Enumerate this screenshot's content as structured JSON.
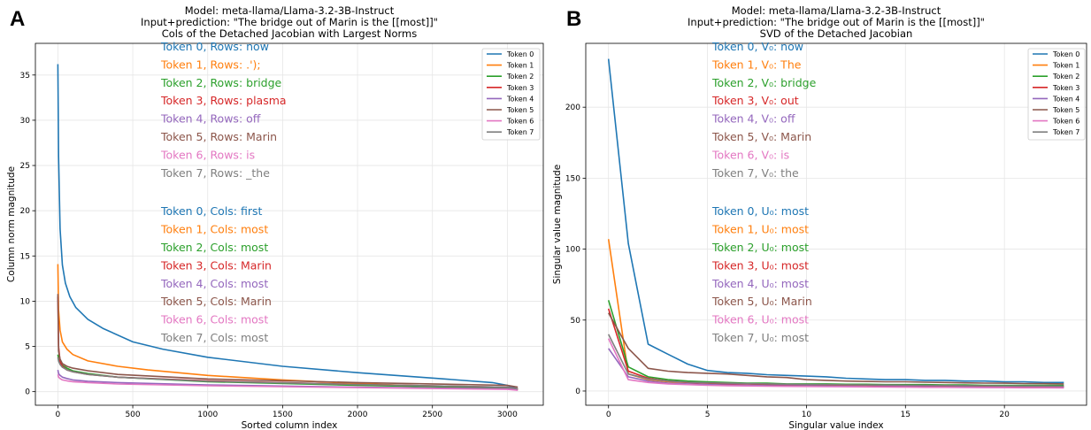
{
  "panels": [
    {
      "label": "A",
      "title_lines": [
        "Model: meta-llama/Llama-3.2-3B-Instruct",
        "Input+prediction: \"The bridge out of Marin is the [[most]]\"",
        "Cols of the Detached Jacobian with Largest Norms"
      ],
      "annotations": [
        "Token 0, Rows: now",
        "Token 1, Rows: .');",
        "Token 2, Rows: bridge",
        "Token 3, Rows: plasma",
        "Token 4, Rows: off",
        "Token 5, Rows: Marin",
        "Token 6, Rows: is",
        "Token 7, Rows: _the",
        "Token 0, Cols: first",
        "Token 1, Cols: most",
        "Token 2, Cols: most",
        "Token 3, Cols: Marin",
        "Token 4, Cols: most",
        "Token 5, Cols: Marin",
        "Token 6, Cols: most",
        "Token 7, Cols: most"
      ]
    },
    {
      "label": "B",
      "title_lines": [
        "Model: meta-llama/Llama-3.2-3B-Instruct",
        "Input+prediction: \"The bridge out of Marin is the [[most]]\"",
        "SVD of the Detached Jacobian"
      ],
      "annotations": [
        "Token 0, V₀: now",
        "Token 1, V₀: The",
        "Token 2, V₀: bridge",
        "Token 3, V₀: out",
        "Token 4, V₀: off",
        "Token 5, V₀: Marin",
        "Token 6, V₀: is",
        "Token 7, V₀: the",
        "Token 0, U₀: most",
        "Token 1, U₀: most",
        "Token 2, U₀: most",
        "Token 3, U₀: most",
        "Token 4, U₀: most",
        "Token 5, U₀: Marin",
        "Token 6, U₀: most",
        "Token 7, U₀: most"
      ]
    }
  ],
  "chart_data": [
    {
      "type": "line",
      "xlabel": "Sorted column index",
      "ylabel": "Column norm magnitude",
      "xlim": [
        -150,
        3240
      ],
      "ylim": [
        -1.5,
        38.5
      ],
      "xticks": [
        0,
        500,
        1000,
        1500,
        2000,
        2500,
        3000
      ],
      "yticks": [
        0,
        5,
        10,
        15,
        20,
        25,
        30,
        35
      ],
      "grid": true,
      "legend_position": "top-right",
      "series": [
        {
          "name": "Token 0",
          "color": "#1f77b4",
          "x": [
            0,
            5,
            15,
            30,
            50,
            80,
            120,
            200,
            300,
            500,
            700,
            1000,
            1500,
            2000,
            2500,
            2900,
            3000,
            3070
          ],
          "y": [
            36.2,
            26,
            18,
            14,
            12,
            10.5,
            9.3,
            8,
            7,
            5.5,
            4.7,
            3.8,
            2.8,
            2.1,
            1.5,
            1.0,
            0.7,
            0.3
          ]
        },
        {
          "name": "Token 1",
          "color": "#ff7f0e",
          "x": [
            0,
            5,
            15,
            30,
            60,
            100,
            200,
            400,
            600,
            1000,
            1500,
            2000,
            2500,
            3000,
            3070
          ],
          "y": [
            14.1,
            9,
            6.8,
            5.5,
            4.7,
            4.1,
            3.4,
            2.8,
            2.4,
            1.8,
            1.3,
            0.9,
            0.6,
            0.35,
            0.2
          ]
        },
        {
          "name": "Token 2",
          "color": "#2ca02c",
          "x": [
            0,
            5,
            15,
            30,
            60,
            100,
            200,
            400,
            1000,
            2000,
            3000,
            3070
          ],
          "y": [
            4.1,
            3.6,
            3.2,
            2.9,
            2.6,
            2.3,
            2.0,
            1.6,
            1.1,
            0.7,
            0.4,
            0.3
          ]
        },
        {
          "name": "Token 3",
          "color": "#d62728",
          "x": [
            0,
            5,
            15,
            30,
            60,
            100,
            200,
            400,
            1000,
            2000,
            3000,
            3070
          ],
          "y": [
            10.5,
            5,
            3.3,
            2.8,
            2.4,
            2.2,
            1.9,
            1.6,
            1.2,
            0.8,
            0.5,
            0.3
          ]
        },
        {
          "name": "Token 4",
          "color": "#9467bd",
          "x": [
            0,
            5,
            15,
            30,
            60,
            100,
            200,
            400,
            1000,
            2000,
            3000,
            3070
          ],
          "y": [
            2.4,
            2.0,
            1.8,
            1.6,
            1.45,
            1.3,
            1.15,
            1.0,
            0.75,
            0.5,
            0.3,
            0.2
          ]
        },
        {
          "name": "Token 5",
          "color": "#8c564b",
          "x": [
            0,
            5,
            15,
            30,
            60,
            100,
            200,
            400,
            1000,
            2000,
            3000,
            3070
          ],
          "y": [
            10.8,
            4.5,
            3.6,
            3.1,
            2.8,
            2.6,
            2.3,
            1.9,
            1.4,
            1.0,
            0.7,
            0.5
          ]
        },
        {
          "name": "Token 6",
          "color": "#e377c2",
          "x": [
            0,
            5,
            15,
            30,
            60,
            100,
            200,
            400,
            1000,
            2000,
            3000,
            3070
          ],
          "y": [
            1.9,
            1.6,
            1.45,
            1.3,
            1.2,
            1.1,
            1.0,
            0.85,
            0.65,
            0.45,
            0.25,
            0.15
          ]
        },
        {
          "name": "Token 7",
          "color": "#7f7f7f",
          "x": [
            0,
            5,
            15,
            30,
            60,
            100,
            200,
            400,
            1000,
            2000,
            3000,
            3070
          ],
          "y": [
            3.8,
            3.4,
            3.0,
            2.7,
            2.4,
            2.2,
            1.9,
            1.6,
            1.15,
            0.8,
            0.5,
            0.3
          ]
        }
      ]
    },
    {
      "type": "line",
      "xlabel": "Singular value index",
      "ylabel": "Singular value magnitude",
      "xlim": [
        -1.15,
        24.15
      ],
      "ylim": [
        -10,
        245
      ],
      "xticks": [
        0,
        5,
        10,
        15,
        20
      ],
      "yticks": [
        0,
        50,
        100,
        150,
        200
      ],
      "grid": true,
      "legend_position": "top-right",
      "series": [
        {
          "name": "Token 0",
          "color": "#1f77b4",
          "x": [
            0,
            1,
            2,
            3,
            4,
            5,
            6,
            7,
            8,
            9,
            10,
            11,
            12,
            13,
            14,
            15,
            16,
            17,
            18,
            19,
            20,
            21,
            22,
            23
          ],
          "y": [
            234,
            104,
            33,
            26,
            19,
            14.5,
            13,
            12.5,
            11.5,
            11,
            10.5,
            10,
            9,
            8.5,
            8,
            8,
            7.5,
            7.5,
            7,
            7,
            6.5,
            6.5,
            6,
            6
          ]
        },
        {
          "name": "Token 1",
          "color": "#ff7f0e",
          "x": [
            0,
            1,
            2,
            3,
            4,
            5,
            6,
            7,
            8,
            9,
            10,
            11,
            12,
            13,
            14,
            15,
            16,
            17,
            18,
            19,
            20,
            21,
            22,
            23
          ],
          "y": [
            107,
            12,
            8,
            6.5,
            6,
            5.5,
            5,
            5,
            4.8,
            4.5,
            4.5,
            4.2,
            4,
            4,
            3.8,
            3.8,
            3.5,
            3.5,
            3.3,
            3.3,
            3,
            3,
            3,
            3
          ]
        },
        {
          "name": "Token 2",
          "color": "#2ca02c",
          "x": [
            0,
            1,
            2,
            3,
            4,
            5,
            6,
            7,
            8,
            9,
            10,
            11,
            12,
            13,
            14,
            15,
            16,
            17,
            18,
            19,
            20,
            21,
            22,
            23
          ],
          "y": [
            64,
            17,
            10,
            8,
            7,
            6.5,
            6,
            5.5,
            5.5,
            5,
            5,
            5,
            4.8,
            4.8,
            4.5,
            4.5,
            4.5,
            4.3,
            4.3,
            4,
            4,
            4,
            4,
            4
          ]
        },
        {
          "name": "Token 3",
          "color": "#d62728",
          "x": [
            0,
            1,
            2,
            3,
            4,
            5,
            6,
            7,
            8,
            9,
            10,
            11,
            12,
            13,
            14,
            15,
            16,
            17,
            18,
            19,
            20,
            21,
            22,
            23
          ],
          "y": [
            58,
            14,
            9,
            7,
            6,
            5.5,
            5,
            5,
            4.5,
            4.5,
            4.2,
            4.2,
            4,
            4,
            3.8,
            3.8,
            3.5,
            3.5,
            3.3,
            3.3,
            3.2,
            3.2,
            3,
            3
          ]
        },
        {
          "name": "Token 4",
          "color": "#9467bd",
          "x": [
            0,
            1,
            2,
            3,
            4,
            5,
            6,
            7,
            8,
            9,
            10,
            11,
            12,
            13,
            14,
            15,
            16,
            17,
            18,
            19,
            20,
            21,
            22,
            23
          ],
          "y": [
            30,
            10,
            7,
            5.5,
            5,
            4.5,
            4.2,
            4,
            3.8,
            3.6,
            3.5,
            3.4,
            3.2,
            3.1,
            3,
            3,
            2.9,
            2.8,
            2.7,
            2.6,
            2.5,
            2.5,
            2.4,
            2.4
          ]
        },
        {
          "name": "Token 5",
          "color": "#8c564b",
          "x": [
            0,
            1,
            2,
            3,
            4,
            5,
            6,
            7,
            8,
            9,
            10,
            11,
            12,
            13,
            14,
            15,
            16,
            17,
            18,
            19,
            20,
            21,
            22,
            23
          ],
          "y": [
            55,
            30,
            16,
            14,
            13,
            12.5,
            12,
            11,
            10,
            9.5,
            8,
            7.5,
            7,
            6.8,
            6.5,
            6.5,
            6.2,
            6,
            5.8,
            5.6,
            5.5,
            5.3,
            5.2,
            5
          ]
        },
        {
          "name": "Token 6",
          "color": "#e377c2",
          "x": [
            0,
            1,
            2,
            3,
            4,
            5,
            6,
            7,
            8,
            9,
            10,
            11,
            12,
            13,
            14,
            15,
            16,
            17,
            18,
            19,
            20,
            21,
            22,
            23
          ],
          "y": [
            37,
            8,
            6,
            5,
            4.5,
            4,
            3.8,
            3.6,
            3.4,
            3.3,
            3.2,
            3.1,
            3,
            2.9,
            2.8,
            2.7,
            2.6,
            2.6,
            2.5,
            2.4,
            2.4,
            2.3,
            2.3,
            2.2
          ]
        },
        {
          "name": "Token 7",
          "color": "#7f7f7f",
          "x": [
            0,
            1,
            2,
            3,
            4,
            5,
            6,
            7,
            8,
            9,
            10,
            11,
            12,
            13,
            14,
            15,
            16,
            17,
            18,
            19,
            20,
            21,
            22,
            23
          ],
          "y": [
            40,
            12,
            8.5,
            7,
            6.2,
            5.8,
            5.5,
            5.2,
            5,
            4.8,
            4.6,
            4.5,
            4.4,
            4.3,
            4.2,
            4.1,
            4,
            3.9,
            3.8,
            3.7,
            3.6,
            3.5,
            3.5,
            3.4
          ]
        }
      ]
    }
  ]
}
